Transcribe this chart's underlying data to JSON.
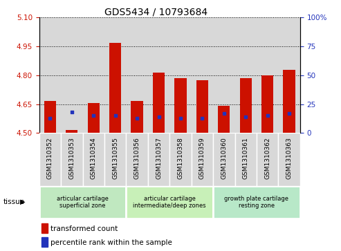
{
  "title": "GDS5434 / 10793684",
  "samples": [
    "GSM1310352",
    "GSM1310353",
    "GSM1310354",
    "GSM1310355",
    "GSM1310356",
    "GSM1310357",
    "GSM1310358",
    "GSM1310359",
    "GSM1310360",
    "GSM1310361",
    "GSM1310362",
    "GSM1310363"
  ],
  "red_values": [
    4.665,
    4.515,
    4.655,
    4.97,
    4.665,
    4.815,
    4.785,
    4.775,
    4.64,
    4.785,
    4.8,
    4.83
  ],
  "blue_percentiles": [
    13,
    18,
    15,
    15,
    13,
    14,
    13,
    13,
    17,
    14,
    15,
    17
  ],
  "y_min": 4.5,
  "y_max": 5.1,
  "y_ticks": [
    4.5,
    4.65,
    4.8,
    4.95,
    5.1
  ],
  "right_y_ticks": [
    0,
    25,
    50,
    75,
    100
  ],
  "right_y_labels": [
    "0",
    "25",
    "50",
    "75",
    "100%"
  ],
  "bar_color": "#cc1100",
  "blue_color": "#2233bb",
  "tissue_groups": [
    {
      "label": "articular cartilage\nsuperficial zone",
      "start": 0,
      "end": 4,
      "color": "#c8eec8"
    },
    {
      "label": "articular cartilage\nintermediate/deep zones",
      "start": 4,
      "end": 8,
      "color": "#c8eec8"
    },
    {
      "label": "growth plate cartilage\nresting zone",
      "start": 8,
      "end": 12,
      "color": "#c8eec8"
    }
  ],
  "tissue_label": "tissue",
  "legend_red": "transformed count",
  "legend_blue": "percentile rank within the sample",
  "bar_width": 0.55,
  "cell_bg_color": "#d8d8d8",
  "left_label_color": "#cc1100",
  "right_label_color": "#2233bb",
  "title_fontsize": 10,
  "tick_fontsize": 7.5,
  "sample_fontsize": 6.5
}
